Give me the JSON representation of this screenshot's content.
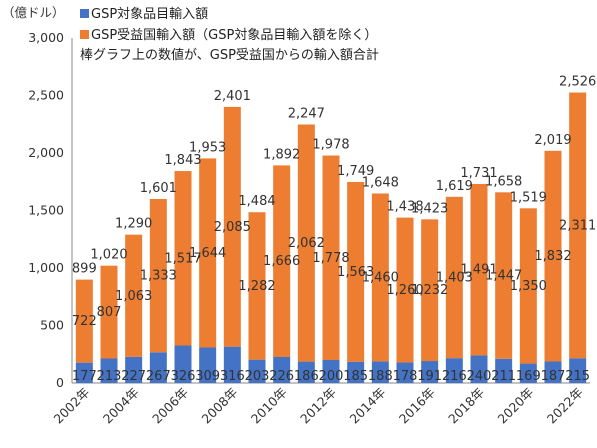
{
  "chart_data": {
    "type": "bar",
    "stacked": true,
    "ylabel": "（億ドル）",
    "ylim": [
      0,
      3000
    ],
    "yticks": [
      0,
      500,
      1000,
      1500,
      2000,
      2500,
      3000
    ],
    "ytick_labels": [
      "0",
      "500",
      "1,000",
      "1,500",
      "2,000",
      "2,500",
      "3,000"
    ],
    "grid": false,
    "legend_position": "top-left",
    "legend_note": "棒グラフ上の数値が、GSP受益国からの輸入額合計",
    "categories": [
      "2002年",
      "2003年",
      "2004年",
      "2005年",
      "2006年",
      "2007年",
      "2008年",
      "2009年",
      "2010年",
      "2011年",
      "2012年",
      "2013年",
      "2014年",
      "2015年",
      "2016年",
      "2017年",
      "2018年",
      "2019年",
      "2020年",
      "2021年",
      "2022年"
    ],
    "category_labels_shown": [
      "2002年",
      "",
      "2004年",
      "",
      "2006年",
      "",
      "2008年",
      "",
      "2010年",
      "",
      "2012年",
      "",
      "2014年",
      "",
      "2016年",
      "",
      "2018年",
      "",
      "2020年",
      "",
      "2022年"
    ],
    "series": [
      {
        "name": "GSP対象品目輸入額",
        "color": "#4472c4",
        "values": [
          177,
          213,
          227,
          267,
          326,
          309,
          316,
          203,
          226,
          186,
          200,
          185,
          188,
          178,
          191,
          216,
          240,
          211,
          169,
          187,
          215
        ]
      },
      {
        "name": "GSP受益国輸入額（GSP対象品目輸入額を除く）",
        "color": "#ed7d31",
        "values": [
          722,
          807,
          1063,
          1333,
          1517,
          1644,
          2085,
          1282,
          1666,
          2062,
          1778,
          1563,
          1460,
          1260,
          1232,
          1403,
          1491,
          1447,
          1350,
          1832,
          2311
        ]
      }
    ],
    "totals": [
      899,
      1020,
      1290,
      1601,
      1843,
      1953,
      2401,
      1484,
      1892,
      2247,
      1978,
      1749,
      1648,
      1438,
      1423,
      1619,
      1731,
      1658,
      1519,
      2019,
      2526
    ]
  }
}
